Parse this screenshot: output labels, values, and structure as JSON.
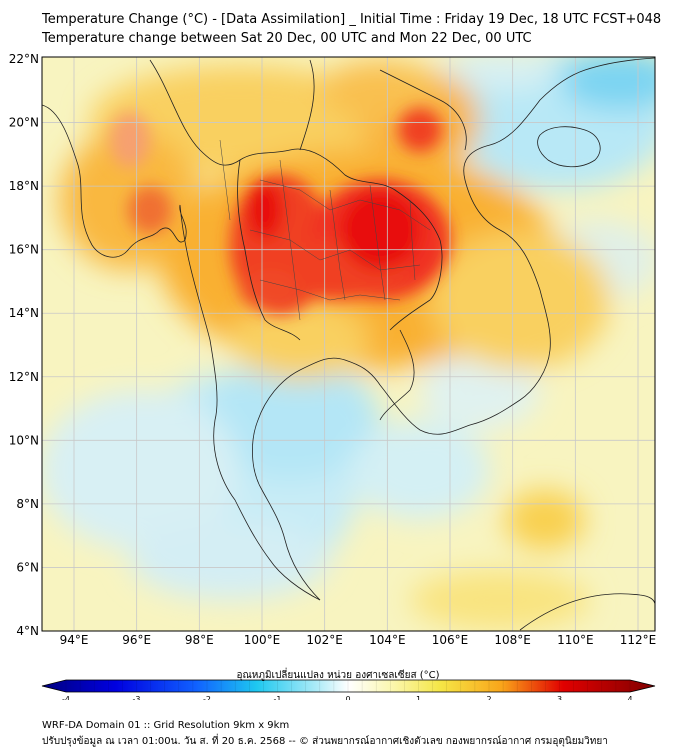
{
  "title_line1": "Temperature Change (°C) - [Data Assimilation] _ Initial Time : Friday 19 Dec, 18 UTC FCST+048",
  "title_line2": "Temperature change between Sat 20 Dec, 00 UTC and Mon 22 Dec, 00 UTC",
  "lat_labels": [
    "22°N",
    "20°N",
    "18°N",
    "16°N",
    "14°N",
    "12°N",
    "10°N",
    "8°N",
    "6°N",
    "4°N"
  ],
  "lon_labels": [
    "94°E",
    "96°E",
    "98°E",
    "100°E",
    "102°E",
    "104°E",
    "106°E",
    "108°E",
    "110°E",
    "112°E"
  ],
  "colorbar": {
    "title": "อุณหภูมิเปลี่ยนแปลง หน่วย องศาเซลเซียส (°C)",
    "ticks": [
      "-4",
      "-3",
      "-2",
      "-1",
      "0",
      "1",
      "2",
      "3",
      "4"
    ],
    "colors": {
      "min": "#00007f",
      "cool": "#1ec8f0",
      "neutral": "#ffffff",
      "warm": "#f5e646",
      "hot": "#e10000",
      "max": "#7f0000"
    }
  },
  "footer_line1": "WRF-DA Domain 01 :: Grid Resolution 9km x 9km",
  "footer_line2": "ปรับปรุงข้อมูล ณ เวลา 01:00น. วัน ส. ที่ 20 ธ.ค. 2568 -- © ส่วนพยากรณ์อากาศเชิงตัวเลข กองพยากรณ์อากาศ กรมอุตุนิยมวิทยา"
}
